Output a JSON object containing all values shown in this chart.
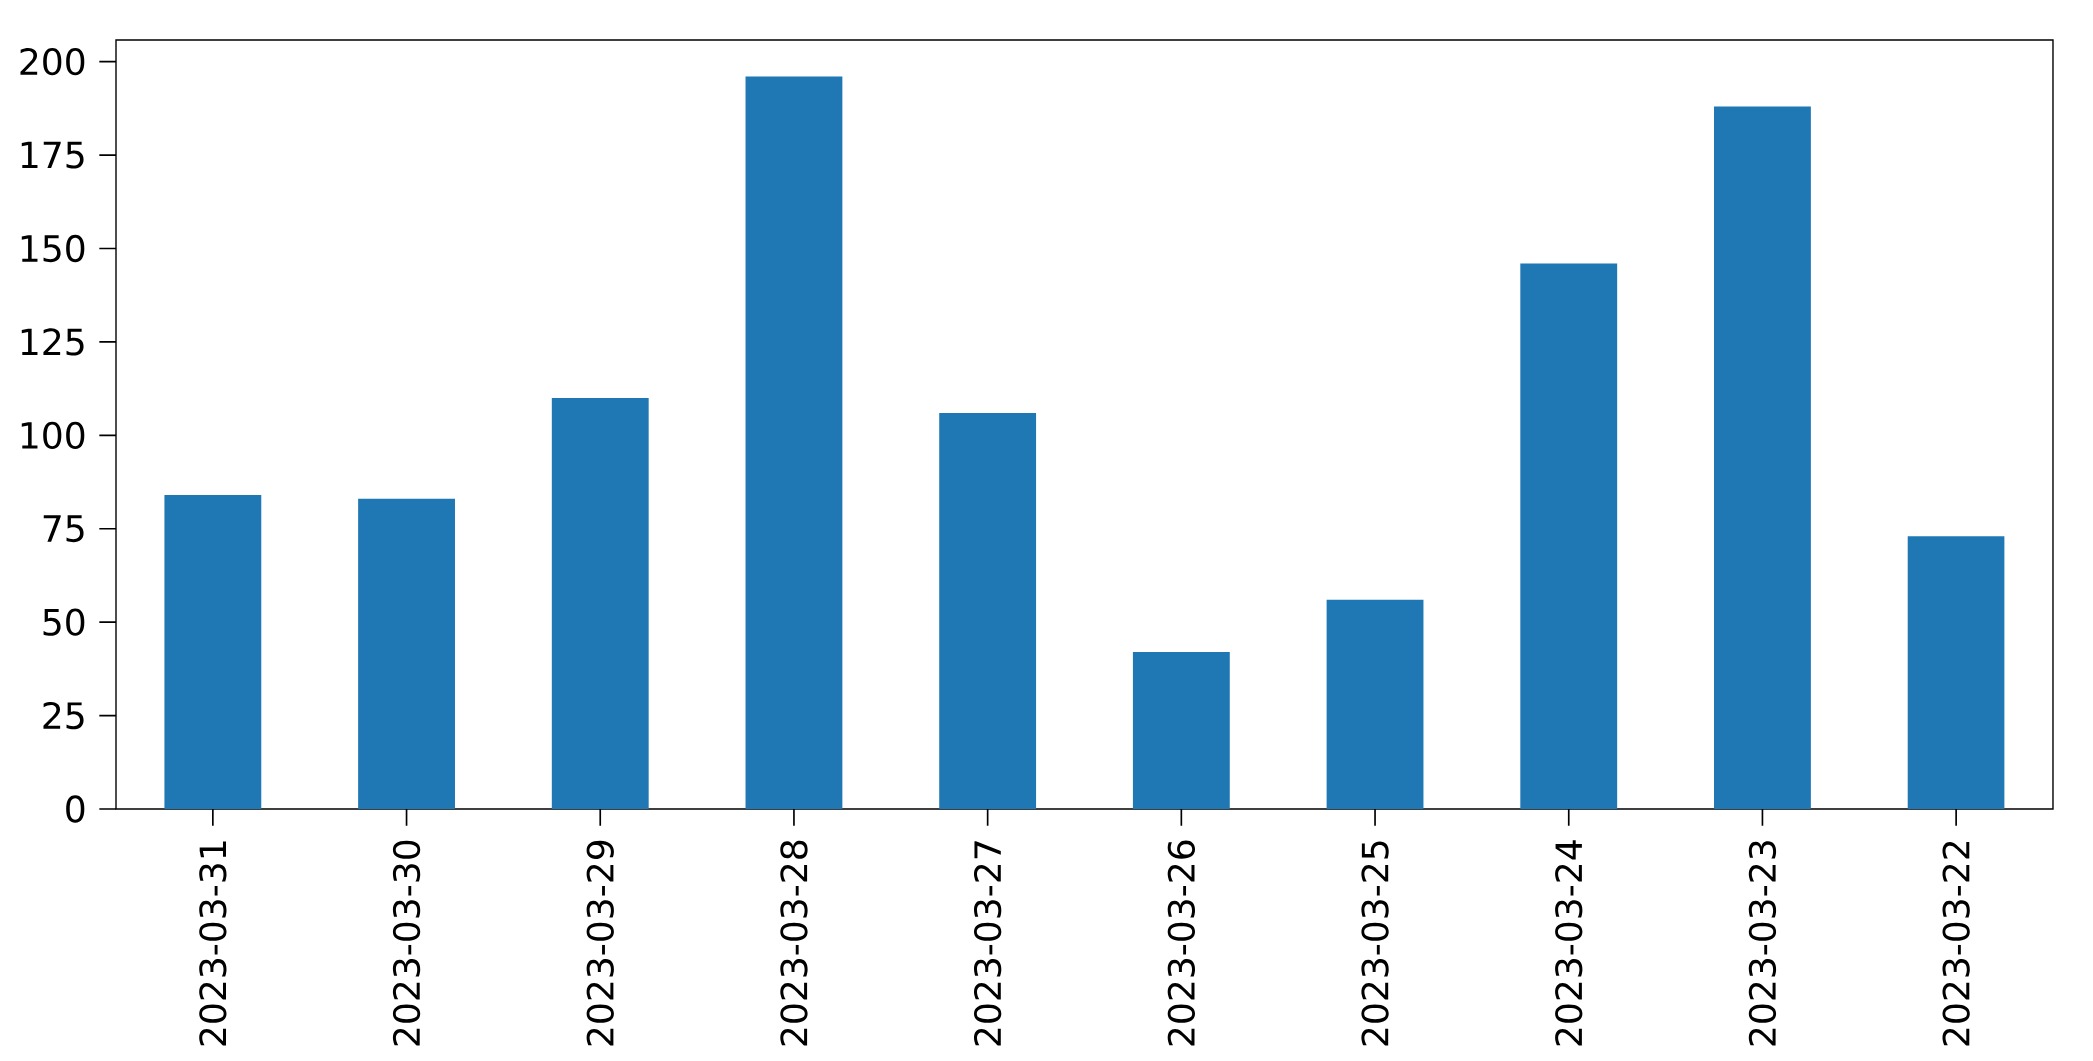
{
  "chart_data": {
    "type": "bar",
    "categories": [
      "2023-03-31",
      "2023-03-30",
      "2023-03-29",
      "2023-03-28",
      "2023-03-27",
      "2023-03-26",
      "2023-03-25",
      "2023-03-24",
      "2023-03-23",
      "2023-03-22"
    ],
    "values": [
      84,
      83,
      110,
      196,
      106,
      42,
      56,
      146,
      188,
      73
    ],
    "color": "#1f77b4",
    "ylim": [
      0,
      205.8
    ],
    "yticks": [
      0,
      25,
      50,
      75,
      100,
      125,
      150,
      175,
      200
    ],
    "grid": false
  }
}
